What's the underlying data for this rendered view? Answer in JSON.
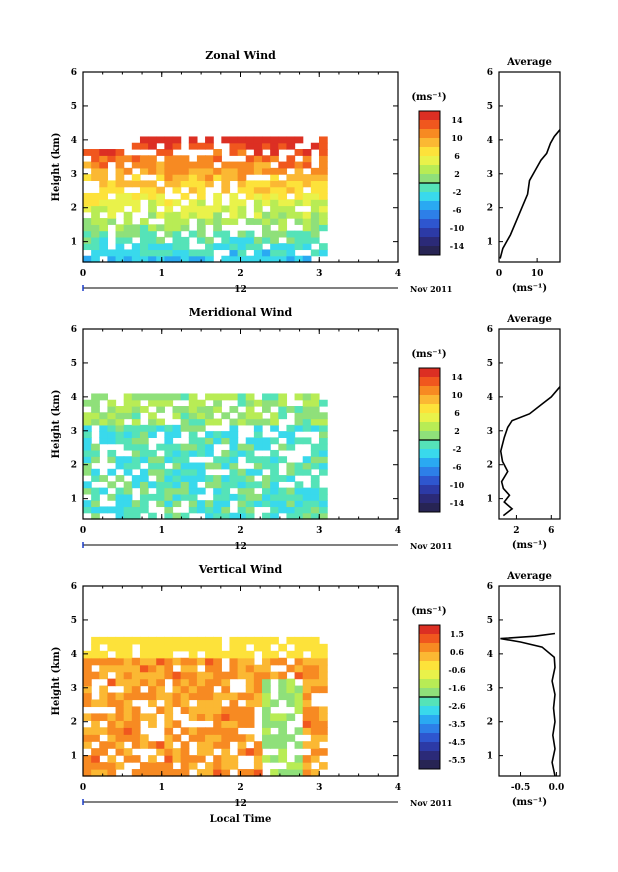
{
  "chart_data": [
    {
      "type": "heatmap",
      "title": "Zonal Wind",
      "ylabel": "Height (km)",
      "xlabel": "",
      "x_ticks": [
        "0",
        "1",
        "2",
        "3",
        "4"
      ],
      "y_ticks": [
        "1",
        "2",
        "3",
        "4",
        "5",
        "6"
      ],
      "xlim": [
        0,
        4
      ],
      "ylim": [
        0.4,
        6
      ],
      "date_label": "12",
      "month_label": "Nov 2011",
      "unit": "(ms⁻¹)",
      "colorbar_ticks": [
        "14",
        "10",
        "6",
        "2",
        "-2",
        "-6",
        "-10",
        "-14"
      ],
      "data_extent_x": [
        0,
        3.1
      ],
      "data_extent_y": [
        0.4,
        4.1
      ],
      "average": {
        "title": "Average",
        "xlabel": "(ms⁻¹)",
        "x_ticks": [
          "0",
          "10"
        ],
        "xlim": [
          0,
          16
        ],
        "profile": [
          [
            0.3,
            0.5
          ],
          [
            1.0,
            0.8
          ],
          [
            3.0,
            1.2
          ],
          [
            4.5,
            1.6
          ],
          [
            6.0,
            2.0
          ],
          [
            7.5,
            2.4
          ],
          [
            8.0,
            2.8
          ],
          [
            9.5,
            3.1
          ],
          [
            11.0,
            3.4
          ],
          [
            12.5,
            3.6
          ],
          [
            13.5,
            3.9
          ],
          [
            14.5,
            4.1
          ],
          [
            16.0,
            4.3
          ]
        ]
      }
    },
    {
      "type": "heatmap",
      "title": "Meridional Wind",
      "ylabel": "Height (km)",
      "xlabel": "",
      "x_ticks": [
        "0",
        "1",
        "2",
        "3",
        "4"
      ],
      "y_ticks": [
        "1",
        "2",
        "3",
        "4",
        "5",
        "6"
      ],
      "xlim": [
        0,
        4
      ],
      "ylim": [
        0.4,
        6
      ],
      "date_label": "12",
      "month_label": "Nov 2011",
      "unit": "(ms⁻¹)",
      "colorbar_ticks": [
        "14",
        "10",
        "6",
        "2",
        "-2",
        "-6",
        "-10",
        "-14"
      ],
      "data_extent_x": [
        0,
        3.1
      ],
      "data_extent_y": [
        0.4,
        4.1
      ],
      "average": {
        "title": "Average",
        "xlabel": "(ms⁻¹)",
        "x_ticks": [
          "2",
          "6"
        ],
        "xlim": [
          0,
          7
        ],
        "profile": [
          [
            0.5,
            0.5
          ],
          [
            1.5,
            0.7
          ],
          [
            0.6,
            0.9
          ],
          [
            1.2,
            1.1
          ],
          [
            0.5,
            1.3
          ],
          [
            0.3,
            1.5
          ],
          [
            1.0,
            1.8
          ],
          [
            0.4,
            2.1
          ],
          [
            0.2,
            2.4
          ],
          [
            0.6,
            2.8
          ],
          [
            1.0,
            3.1
          ],
          [
            1.5,
            3.3
          ],
          [
            3.5,
            3.5
          ],
          [
            5.0,
            3.8
          ],
          [
            6.0,
            4.0
          ],
          [
            7.0,
            4.3
          ]
        ]
      }
    },
    {
      "type": "heatmap",
      "title": "Vertical Wind",
      "ylabel": "Height (km)",
      "xlabel": "Local Time",
      "x_ticks": [
        "0",
        "1",
        "2",
        "3",
        "4"
      ],
      "y_ticks": [
        "1",
        "2",
        "3",
        "4",
        "5",
        "6"
      ],
      "xlim": [
        0,
        4
      ],
      "ylim": [
        0.4,
        6
      ],
      "date_label": "12",
      "month_label": "Nov 2011",
      "unit": "(ms⁻¹)",
      "colorbar_ticks": [
        "1.5",
        "0.6",
        "-0.6",
        "-1.6",
        "-2.6",
        "-3.5",
        "-4.5",
        "-5.5"
      ],
      "data_extent_x": [
        0,
        3.1
      ],
      "data_extent_y": [
        0.4,
        4.5
      ],
      "average": {
        "title": "Average",
        "xlabel": "(ms⁻¹)",
        "x_ticks": [
          "-0.5",
          "0.0"
        ],
        "xlim": [
          -0.8,
          0.05
        ],
        "profile": [
          [
            -0.02,
            0.4
          ],
          [
            -0.06,
            0.8
          ],
          [
            -0.02,
            1.2
          ],
          [
            -0.05,
            1.6
          ],
          [
            -0.02,
            2.0
          ],
          [
            -0.04,
            2.4
          ],
          [
            -0.02,
            2.8
          ],
          [
            -0.06,
            3.2
          ],
          [
            -0.02,
            3.6
          ],
          [
            -0.03,
            3.9
          ],
          [
            -0.2,
            4.2
          ],
          [
            -0.5,
            4.35
          ],
          [
            -0.78,
            4.45
          ],
          [
            -0.3,
            4.52
          ],
          [
            -0.02,
            4.6
          ]
        ]
      }
    }
  ],
  "colors": {
    "scale": [
      "#dc2f23",
      "#f0571e",
      "#f78a22",
      "#fbb833",
      "#fde23a",
      "#e9f24a",
      "#b8ec55",
      "#8fe07a",
      "#55e3b8",
      "#39d9ec",
      "#2aa9f2",
      "#2d7fe8",
      "#2e56cf",
      "#2c3aa6",
      "#2b2a78",
      "#272454"
    ],
    "line": "#000000"
  }
}
